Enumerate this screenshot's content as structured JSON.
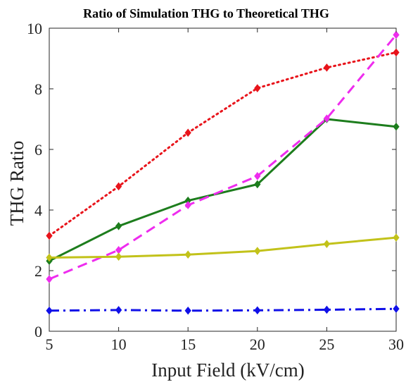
{
  "chart_data": {
    "type": "line",
    "title": "Ratio of Simulation THG to Theoretical THG",
    "xlabel": "Input Field (kV/cm)",
    "ylabel": "THG Ratio",
    "xlim": [
      5,
      30
    ],
    "ylim": [
      0,
      10
    ],
    "x_ticks": [
      "5",
      "10",
      "15",
      "20",
      "25",
      "30"
    ],
    "y_ticks": [
      "0",
      "2",
      "4",
      "6",
      "8",
      "10"
    ],
    "grid": false,
    "x": [
      5,
      10,
      15,
      20,
      25,
      30
    ],
    "series": [
      {
        "values": [
          3.15,
          4.78,
          6.55,
          8.02,
          8.7,
          9.2
        ],
        "color": "#e8141b",
        "dash": "dotted",
        "marker": "diamond"
      },
      {
        "values": [
          2.32,
          3.47,
          4.31,
          4.85,
          7.0,
          6.75
        ],
        "color": "#1d7d1d",
        "dash": "solid",
        "marker": "diamond"
      },
      {
        "values": [
          1.72,
          2.68,
          4.16,
          5.12,
          7.02,
          9.78
        ],
        "color": "#ee2cee",
        "dash": "dashed",
        "marker": "diamond"
      },
      {
        "values": [
          2.43,
          2.46,
          2.53,
          2.65,
          2.88,
          3.09
        ],
        "color": "#c2c21a",
        "dash": "solid",
        "marker": "diamond"
      },
      {
        "values": [
          0.68,
          0.7,
          0.68,
          0.69,
          0.71,
          0.74
        ],
        "color": "#1010e8",
        "dash": "dashdot",
        "marker": "diamond"
      }
    ]
  }
}
